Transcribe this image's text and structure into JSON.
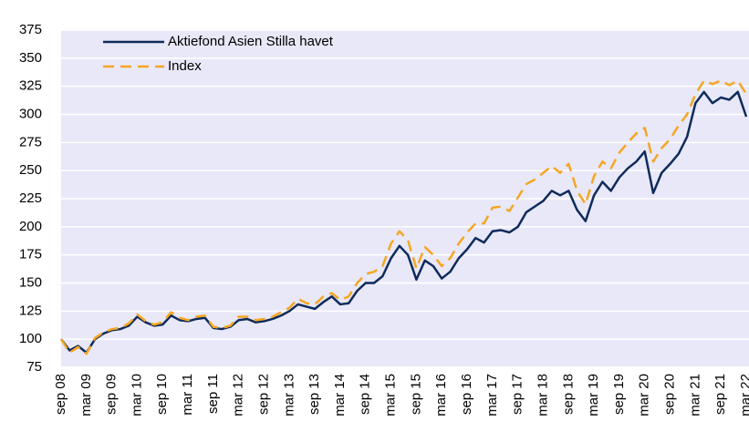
{
  "chart_data": {
    "type": "line",
    "categories": [
      "sep 08",
      null,
      null,
      "mar 09",
      null,
      null,
      "sep 09",
      null,
      null,
      "mar 10",
      null,
      null,
      "sep 10",
      null,
      null,
      "mar 11",
      null,
      null,
      "sep 11",
      null,
      null,
      "mar 12",
      null,
      null,
      "sep 12",
      null,
      null,
      "mar 13",
      null,
      null,
      "sep 13",
      null,
      null,
      "mar 14",
      null,
      null,
      "sep 14",
      null,
      null,
      "mar 15",
      null,
      null,
      "sep 15",
      null,
      null,
      "mar 16",
      null,
      null,
      "sep 16",
      null,
      null,
      "mar 17",
      null,
      null,
      "sep 17",
      null,
      null,
      "mar 18",
      null,
      null,
      "sep 18",
      null,
      null,
      "mar 19",
      null,
      null,
      "sep 19",
      null,
      null,
      "mar 20",
      null,
      null,
      "sep 20",
      null,
      null,
      "mar 21",
      null,
      null,
      "sep 21",
      null,
      null,
      "mar 22"
    ],
    "series": [
      {
        "name": "Aktiefond Asien Stilla havet",
        "color": "#0f2b5b",
        "dashed": false,
        "values": [
          100,
          90,
          94,
          88,
          100,
          105,
          108,
          109,
          112,
          120,
          115,
          112,
          113,
          121,
          117,
          116,
          118,
          119,
          110,
          109,
          111,
          117,
          118,
          115,
          116,
          118,
          121,
          125,
          131,
          129,
          127,
          133,
          138,
          131,
          132,
          143,
          150,
          150,
          156,
          172,
          183,
          175,
          153,
          170,
          165,
          154,
          160,
          172,
          180,
          190,
          186,
          196,
          197,
          195,
          200,
          213,
          218,
          223,
          232,
          228,
          232,
          215,
          205,
          228,
          240,
          232,
          244,
          252,
          258,
          267,
          230,
          248,
          256,
          265,
          280,
          310,
          320,
          310,
          315,
          313,
          320,
          298
        ]
      },
      {
        "name": "Index",
        "color": "#f5a623",
        "dashed": true,
        "values": [
          100,
          88,
          93,
          87,
          101,
          106,
          109,
          110,
          114,
          122,
          116,
          113,
          115,
          124,
          119,
          117,
          120,
          121,
          111,
          110,
          112,
          120,
          120,
          117,
          118,
          120,
          124,
          128,
          136,
          132,
          131,
          138,
          141,
          135,
          138,
          150,
          158,
          160,
          165,
          185,
          196,
          188,
          163,
          182,
          175,
          165,
          172,
          185,
          195,
          203,
          203,
          217,
          218,
          214,
          226,
          238,
          242,
          248,
          254,
          248,
          256,
          232,
          220,
          245,
          258,
          252,
          266,
          275,
          283,
          288,
          258,
          270,
          278,
          290,
          300,
          318,
          330,
          327,
          330,
          326,
          330,
          318
        ]
      }
    ],
    "ylim": [
      75,
      375
    ],
    "yticks": [
      75,
      100,
      125,
      150,
      175,
      200,
      225,
      250,
      275,
      300,
      325,
      350,
      375
    ],
    "grid": true,
    "legend": "upper left",
    "background": "#e8e8f8"
  }
}
